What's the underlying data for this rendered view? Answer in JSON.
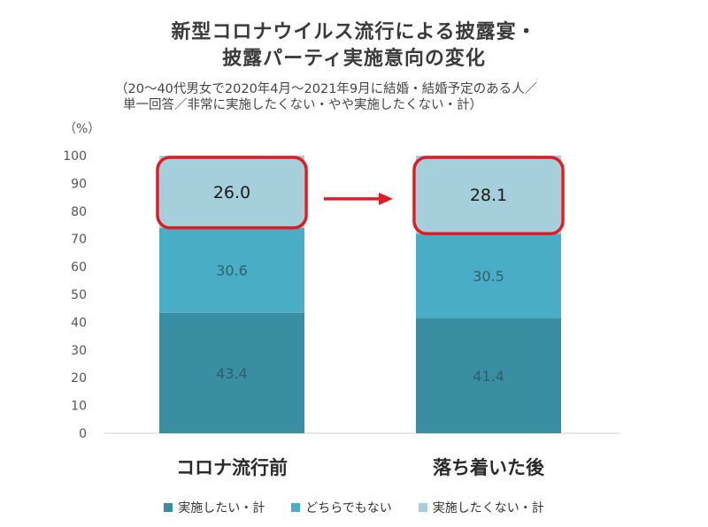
{
  "colors": {
    "series1": "#3a8ea2",
    "series2": "#4aadc6",
    "series3": "#a6cfdc",
    "highlight": "#e21b23",
    "arrow": "#e21b23",
    "axis_text": "#555555"
  },
  "chart_data": {
    "type": "bar",
    "stacked": true,
    "title": [
      "新型コロナウイルス流行による披露宴・",
      "披露パーティ実施意向の変化"
    ],
    "subtitle": [
      "（20～40代男女で2020年4月～2021年9月に結婚・結婚予定のある人／",
      "単一回答／非常に実施したくない・やや実施したくない・計）"
    ],
    "y_unit": "（%）",
    "ylim": [
      0,
      100
    ],
    "yticks": [
      0,
      10,
      20,
      30,
      40,
      50,
      60,
      70,
      80,
      90,
      100
    ],
    "categories": [
      "コロナ流行前",
      "落ち着いた後"
    ],
    "series": [
      {
        "name": "実施したい・計",
        "values": [
          43.4,
          41.4
        ],
        "color_key": "series1"
      },
      {
        "name": "どちらでもない",
        "values": [
          30.6,
          30.5
        ],
        "color_key": "series2"
      },
      {
        "name": "実施したくない・計",
        "values": [
          26.0,
          28.1
        ],
        "color_key": "series3"
      }
    ],
    "highlighted_series": 2,
    "grid": false,
    "legend_position": "bottom"
  }
}
